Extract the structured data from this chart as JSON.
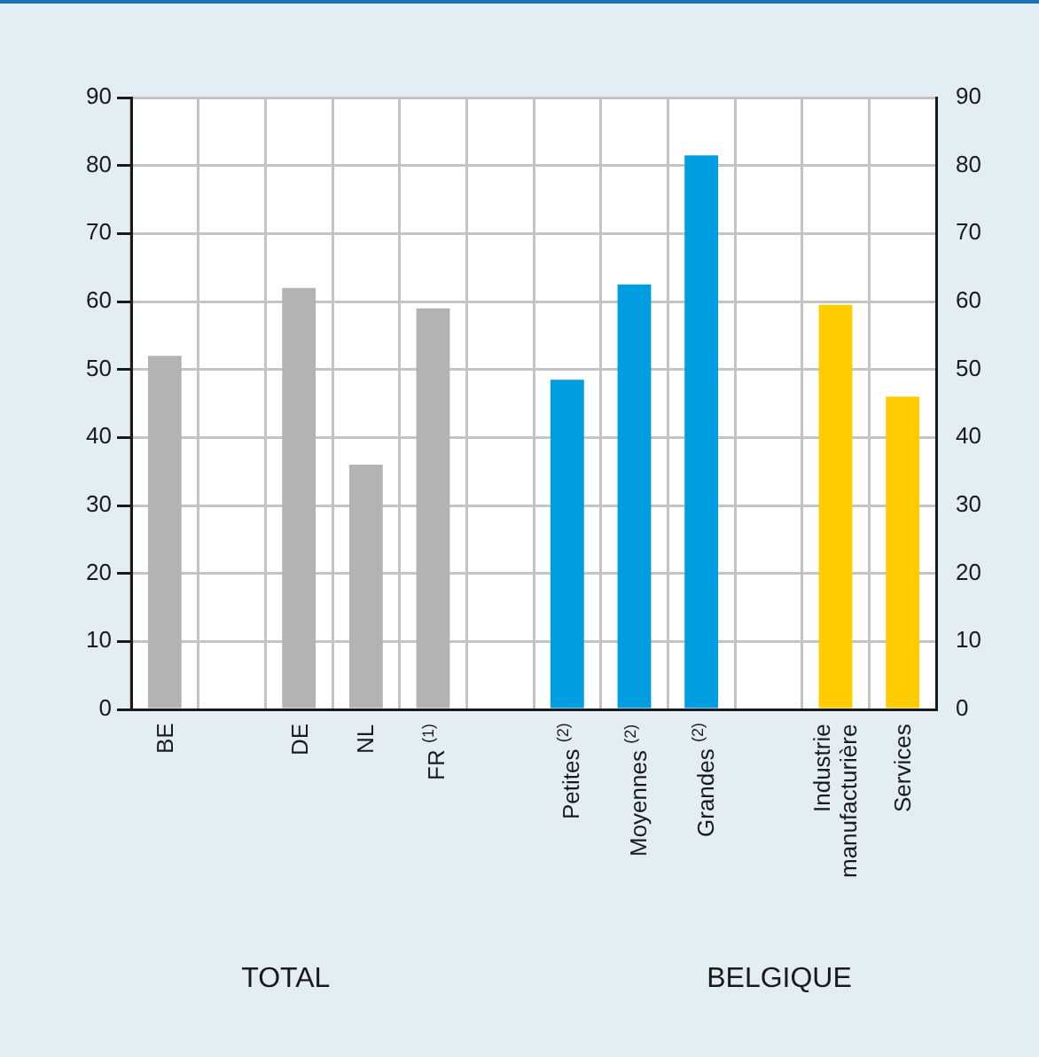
{
  "chart_data": {
    "type": "bar",
    "categories": [
      "BE",
      null,
      "DE",
      "NL",
      "FR $^{(1)}$",
      null,
      "Petites $^{(2)}$",
      "Moyennes $^{(2)}$",
      "Grandes $^{(2)}$",
      null,
      "Industrie manufacturière",
      "Services"
    ],
    "values": [
      52,
      null,
      62,
      36,
      59,
      null,
      48.5,
      62.5,
      81.5,
      null,
      59.5,
      46
    ],
    "colors": [
      "#b2b3b5",
      null,
      "#b2b3b5",
      "#b2b3b5",
      "#b2b3b5",
      null,
      "#009ee0",
      "#009ee0",
      "#009ee0",
      null,
      "#ffcc00",
      "#ffcc00"
    ],
    "ylim": [
      0,
      90
    ],
    "yticks": [
      0,
      10,
      20,
      30,
      40,
      50,
      60,
      70,
      80,
      90
    ],
    "y2lim": [
      0,
      90
    ],
    "y2ticks": [
      0,
      10,
      20,
      30,
      40,
      50,
      60,
      70,
      80,
      90
    ],
    "grid": true,
    "annotations": [
      "TOTAL",
      "BELGIQUE"
    ]
  }
}
